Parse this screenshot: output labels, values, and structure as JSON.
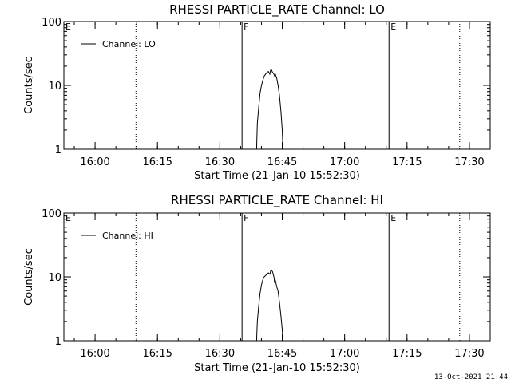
{
  "chart_data": [
    {
      "type": "line",
      "title": "RHESSI PARTICLE_RATE Channel: LO",
      "xlabel": "Start Time (21-Jan-10 15:52:30)",
      "ylabel": "Counts/sec",
      "yscale": "log",
      "ylim": [
        1,
        100
      ],
      "yticks": [
        {
          "v": 1,
          "label": "1"
        },
        {
          "v": 10,
          "label": "10"
        },
        {
          "v": 100,
          "label": "100"
        }
      ],
      "xlim": [
        "15:52:30",
        "17:35:00"
      ],
      "xticks": [
        "16:00",
        "16:15",
        "16:30",
        "16:45",
        "17:00",
        "17:15",
        "17:30"
      ],
      "legend_label": "Channel: LO",
      "legend_position": "top-left",
      "markers": [
        {
          "time": "15:52:30",
          "label": "E",
          "style": "solid"
        },
        {
          "time": "16:09:50",
          "label": "",
          "style": "dotted"
        },
        {
          "time": "16:35:20",
          "label": "F",
          "style": "solid"
        },
        {
          "time": "17:10:40",
          "label": "E",
          "style": "solid"
        },
        {
          "time": "17:27:40",
          "label": "",
          "style": "dotted"
        }
      ],
      "series": [
        {
          "name": "Channel: LO",
          "points": [
            [
              "16:38:50",
              1.0
            ],
            [
              "16:39:00",
              2.5
            ],
            [
              "16:39:20",
              4.5
            ],
            [
              "16:39:40",
              7.5
            ],
            [
              "16:40:00",
              10
            ],
            [
              "16:40:20",
              12
            ],
            [
              "16:40:40",
              14
            ],
            [
              "16:41:00",
              15
            ],
            [
              "16:41:20",
              16
            ],
            [
              "16:41:40",
              16.5
            ],
            [
              "16:42:00",
              15
            ],
            [
              "16:42:10",
              17
            ],
            [
              "16:42:20",
              18
            ],
            [
              "16:42:40",
              16
            ],
            [
              "16:43:00",
              15
            ],
            [
              "16:43:10",
              14
            ],
            [
              "16:43:20",
              15
            ],
            [
              "16:43:40",
              13
            ],
            [
              "16:44:00",
              10
            ],
            [
              "16:44:20",
              7
            ],
            [
              "16:44:40",
              4
            ],
            [
              "16:45:00",
              2
            ],
            [
              "16:45:10",
              1.0
            ]
          ]
        }
      ]
    },
    {
      "type": "line",
      "title": "RHESSI PARTICLE_RATE Channel: HI",
      "xlabel": "Start Time (21-Jan-10 15:52:30)",
      "ylabel": "Counts/sec",
      "yscale": "log",
      "ylim": [
        1,
        100
      ],
      "yticks": [
        {
          "v": 1,
          "label": "1"
        },
        {
          "v": 10,
          "label": "10"
        },
        {
          "v": 100,
          "label": "100"
        }
      ],
      "xlim": [
        "15:52:30",
        "17:35:00"
      ],
      "xticks": [
        "16:00",
        "16:15",
        "16:30",
        "16:45",
        "17:00",
        "17:15",
        "17:30"
      ],
      "legend_label": "Channel: HI",
      "legend_position": "top-left",
      "markers": [
        {
          "time": "15:52:30",
          "label": "E",
          "style": "solid"
        },
        {
          "time": "16:09:50",
          "label": "",
          "style": "dotted"
        },
        {
          "time": "16:35:20",
          "label": "F",
          "style": "solid"
        },
        {
          "time": "17:10:40",
          "label": "E",
          "style": "solid"
        },
        {
          "time": "17:27:40",
          "label": "",
          "style": "dotted"
        }
      ],
      "series": [
        {
          "name": "Channel: HI",
          "points": [
            [
              "16:38:50",
              1.0
            ],
            [
              "16:39:00",
              2.0
            ],
            [
              "16:39:20",
              3.5
            ],
            [
              "16:39:40",
              5.5
            ],
            [
              "16:40:00",
              7.5
            ],
            [
              "16:40:20",
              9
            ],
            [
              "16:40:40",
              10
            ],
            [
              "16:41:00",
              10.5
            ],
            [
              "16:41:20",
              11
            ],
            [
              "16:41:40",
              11.5
            ],
            [
              "16:42:00",
              11
            ],
            [
              "16:42:10",
              12
            ],
            [
              "16:42:20",
              13
            ],
            [
              "16:42:40",
              12
            ],
            [
              "16:43:00",
              10
            ],
            [
              "16:43:10",
              8
            ],
            [
              "16:43:20",
              9
            ],
            [
              "16:43:40",
              7
            ],
            [
              "16:44:00",
              6
            ],
            [
              "16:44:20",
              4
            ],
            [
              "16:44:40",
              2.5
            ],
            [
              "16:45:00",
              1.5
            ],
            [
              "16:45:10",
              1.0
            ]
          ]
        }
      ]
    }
  ],
  "footer": {
    "stamp": "13-Oct-2021 21:44"
  }
}
